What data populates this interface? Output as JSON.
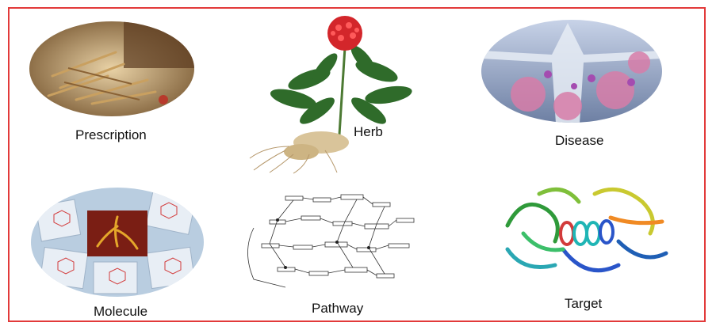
{
  "labels": {
    "prescription": "Prescription",
    "herb": "Herb",
    "disease": "Disease",
    "molecule": "Molecule",
    "pathway": "Pathway",
    "target": "Target"
  },
  "colors": {
    "frame": "#e23a3a",
    "herb_flower": "#d3262b",
    "leaf": "#2f6b2a",
    "disease_bg": "#8fa4c6",
    "molecule_bg": "#b9cde0"
  }
}
